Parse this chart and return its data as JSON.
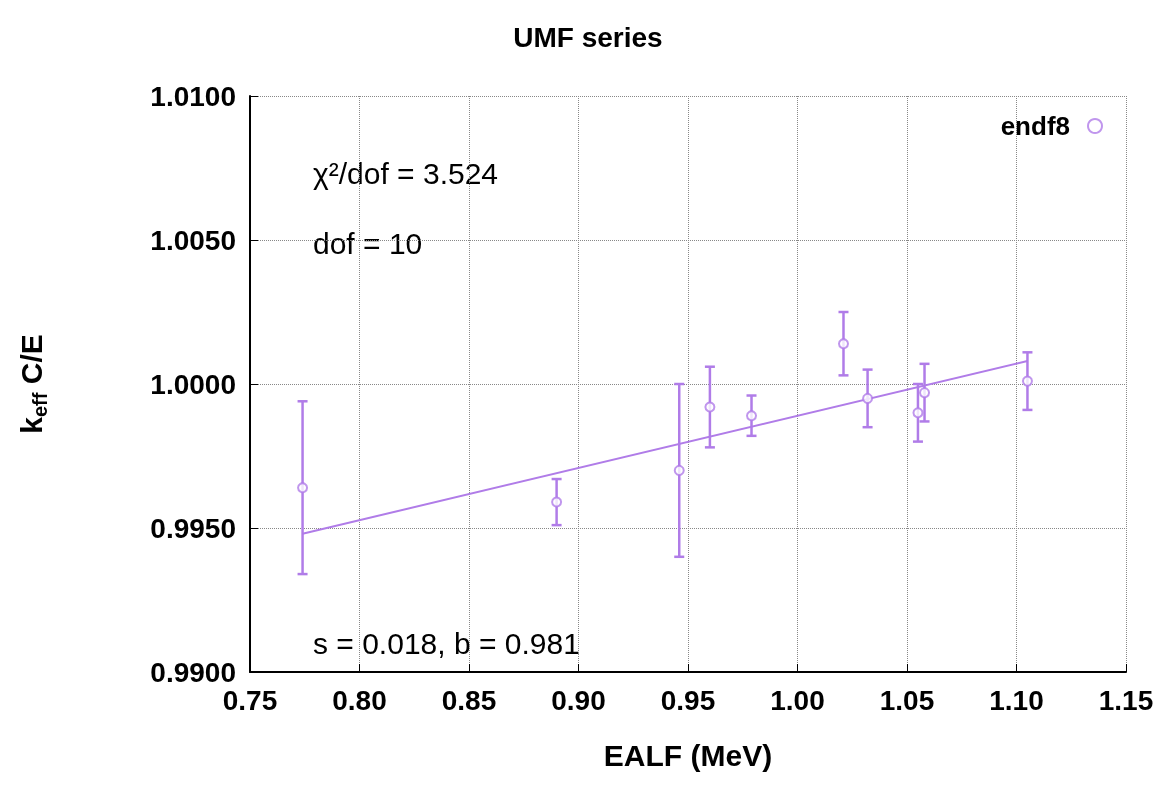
{
  "chart_data": {
    "type": "scatter",
    "title": "UMF series",
    "xlabel": "EALF (MeV)",
    "ylabel": "k$_{eff}$ C/E",
    "xlim": [
      0.75,
      1.15
    ],
    "xticks": [
      {
        "value": 0.75,
        "label": "0.75"
      },
      {
        "value": 0.8,
        "label": "0.80"
      },
      {
        "value": 0.85,
        "label": "0.85"
      },
      {
        "value": 0.9,
        "label": "0.90"
      },
      {
        "value": 0.95,
        "label": "0.95"
      },
      {
        "value": 1.0,
        "label": "1.00"
      },
      {
        "value": 1.05,
        "label": "1.05"
      },
      {
        "value": 1.1,
        "label": "1.10"
      },
      {
        "value": 1.15,
        "label": "1.15"
      }
    ],
    "ylim": [
      0.99,
      1.01
    ],
    "yticks": [
      {
        "value": 0.99,
        "label": "0.9900"
      },
      {
        "value": 0.995,
        "label": "0.9950"
      },
      {
        "value": 1.0,
        "label": "1.0000"
      },
      {
        "value": 1.005,
        "label": "1.0050"
      },
      {
        "value": 1.01,
        "label": "1.0100"
      }
    ],
    "grid": true,
    "legend": "top right",
    "marker": "circle",
    "series": [
      {
        "name": "endf8",
        "color": "#b07ce8",
        "x": [
          0.774,
          0.89,
          0.946,
          0.96,
          0.979,
          1.021,
          1.032,
          1.055,
          1.058,
          1.105
        ],
        "values": [
          0.9964,
          0.9959,
          0.997,
          0.9992,
          0.9989,
          1.0014,
          0.9995,
          0.999,
          0.9997,
          1.0001
        ],
        "errors": [
          0.003,
          0.0008,
          0.003,
          0.0014,
          0.0007,
          0.0011,
          0.001,
          0.001,
          0.001,
          0.001
        ]
      },
      {
        "type": "line",
        "color": "#b07ce8",
        "marker": "none",
        "x": [
          0.774,
          1.105
        ],
        "values": [
          0.9948,
          1.0008
        ]
      }
    ],
    "annotations": [
      "χ²/dof = 3.524",
      "dof = 10",
      "s = 0.018, b = 0.981"
    ]
  }
}
